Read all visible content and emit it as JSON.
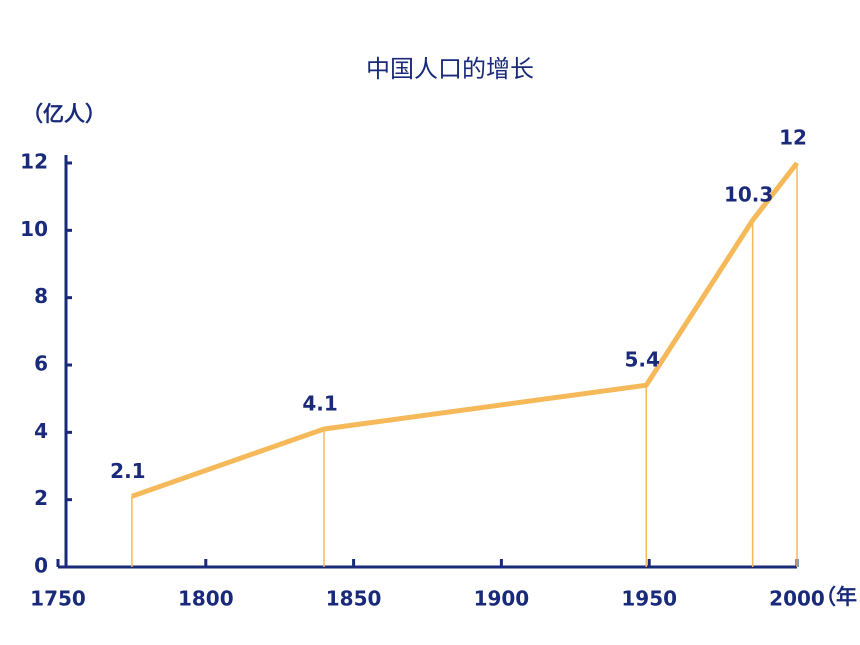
{
  "chart_data": {
    "type": "line",
    "title": "中国人口的增长",
    "y_label": "（亿人）",
    "x_label": "（年",
    "x": [
      1775,
      1840,
      1949,
      1985,
      2000
    ],
    "values": [
      2.1,
      4.1,
      5.4,
      10.3,
      12
    ],
    "color": "#f5b95a",
    "xlim": [
      1750,
      2000
    ],
    "xticks": [
      1750,
      1800,
      1850,
      1900,
      1950,
      2000
    ],
    "ylim": [
      0,
      12
    ],
    "yticks": [
      0,
      2,
      4,
      6,
      8,
      10,
      12
    ],
    "drop_lines": true
  }
}
